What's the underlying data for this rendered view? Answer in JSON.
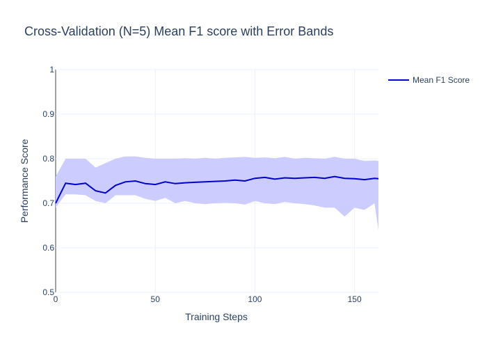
{
  "chart_data": {
    "type": "line",
    "title": "Cross-Validation (N=5) Mean F1 score with Error Bands",
    "xlabel": "Training Steps",
    "ylabel": "Performance Score",
    "xlim": [
      0,
      162
    ],
    "ylim": [
      0.5,
      1.0
    ],
    "x_ticks": [
      0,
      50,
      100,
      150
    ],
    "y_ticks": [
      0.5,
      0.6,
      0.7,
      0.8,
      0.9,
      1
    ],
    "y_tick_labels": [
      "0.5",
      "0.6",
      "0.7",
      "0.8",
      "0.9",
      "1"
    ],
    "grid": true,
    "legend_position": "top-right",
    "series": [
      {
        "name": "Mean F1 Score",
        "color": "#0000cd",
        "band_color": "#ccccff",
        "x": [
          0,
          5,
          10,
          15,
          20,
          25,
          30,
          35,
          40,
          45,
          50,
          55,
          60,
          65,
          70,
          75,
          80,
          85,
          90,
          95,
          100,
          105,
          110,
          115,
          120,
          125,
          130,
          135,
          140,
          145,
          150,
          155,
          160,
          162
        ],
        "values": [
          0.7,
          0.745,
          0.742,
          0.745,
          0.728,
          0.723,
          0.74,
          0.748,
          0.75,
          0.744,
          0.742,
          0.748,
          0.744,
          0.746,
          0.747,
          0.748,
          0.749,
          0.75,
          0.752,
          0.75,
          0.756,
          0.758,
          0.754,
          0.757,
          0.756,
          0.757,
          0.758,
          0.756,
          0.76,
          0.756,
          0.755,
          0.753,
          0.756,
          0.755
        ],
        "upper": [
          0.76,
          0.8,
          0.8,
          0.8,
          0.78,
          0.79,
          0.8,
          0.805,
          0.805,
          0.802,
          0.8,
          0.8,
          0.8,
          0.801,
          0.8,
          0.802,
          0.8,
          0.802,
          0.803,
          0.804,
          0.802,
          0.803,
          0.801,
          0.804,
          0.8,
          0.802,
          0.801,
          0.8,
          0.804,
          0.8,
          0.8,
          0.795,
          0.796,
          0.795
        ],
        "lower": [
          0.69,
          0.72,
          0.72,
          0.718,
          0.705,
          0.7,
          0.718,
          0.718,
          0.718,
          0.71,
          0.705,
          0.712,
          0.7,
          0.705,
          0.7,
          0.698,
          0.7,
          0.701,
          0.7,
          0.697,
          0.705,
          0.7,
          0.698,
          0.703,
          0.7,
          0.698,
          0.695,
          0.69,
          0.69,
          0.67,
          0.69,
          0.685,
          0.7,
          0.64
        ]
      }
    ]
  }
}
